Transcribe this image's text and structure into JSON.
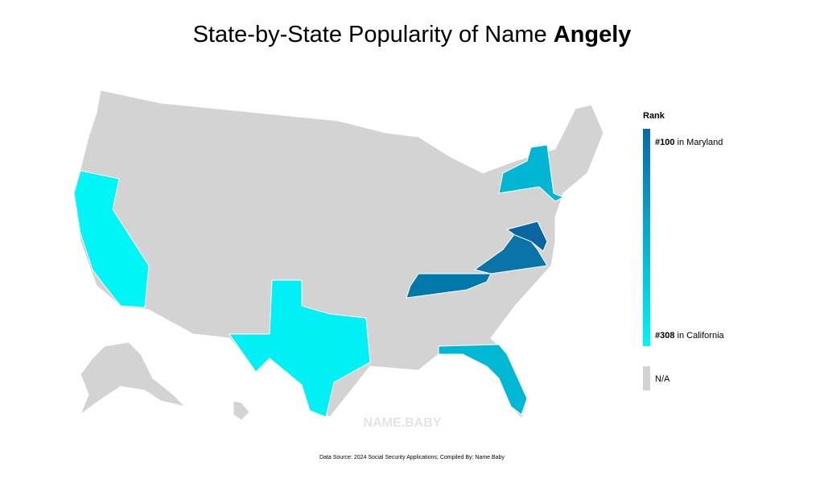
{
  "title": {
    "text": "State-by-State Popularity of Name",
    "name": "Angely"
  },
  "legend": {
    "title": "Rank",
    "top": {
      "rank": "#100",
      "label": "in Maryland"
    },
    "bottom": {
      "rank": "#308",
      "label": "in California"
    },
    "na": "N/A",
    "colors": [
      "#0a6aa3",
      "#00f4f8"
    ],
    "na_color": "#d3d3d3"
  },
  "watermark": "NAME.BABY",
  "source": "Data Source: 2024 Social Security Applications; Compiled By: Name.Baby"
}
